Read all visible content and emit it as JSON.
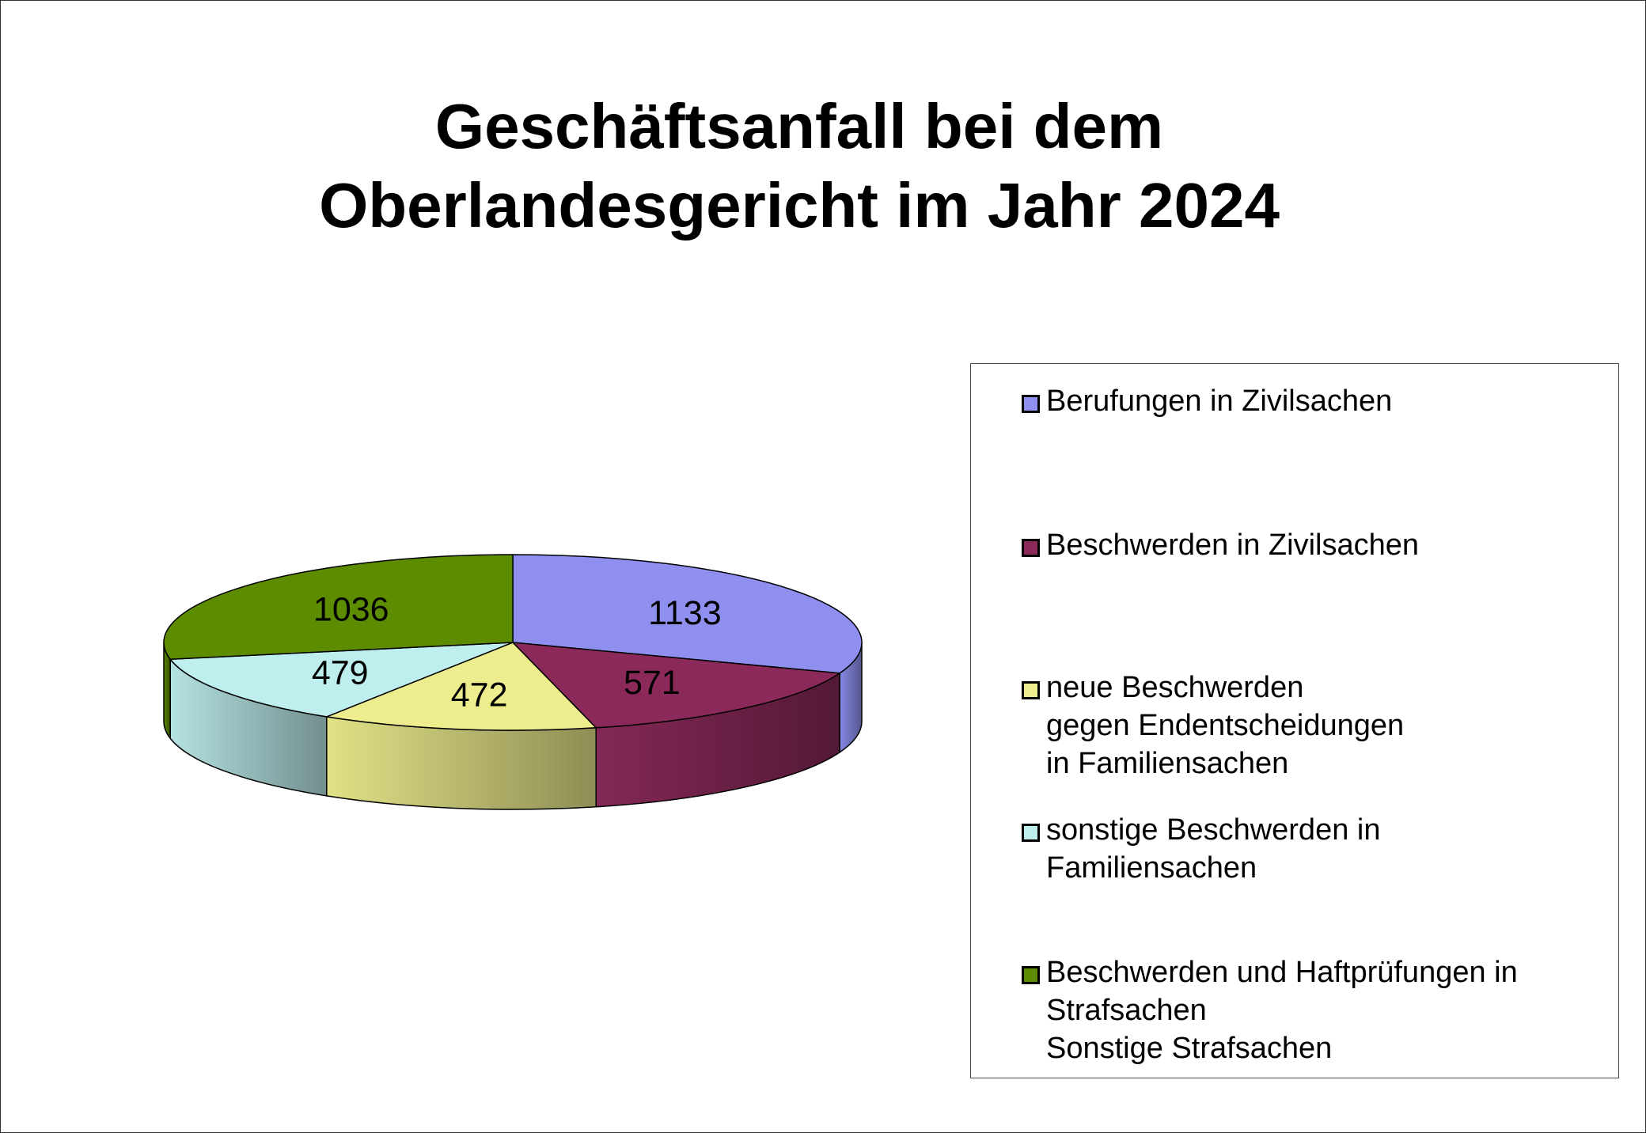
{
  "title_lines": [
    "Geschäftsanfall bei dem",
    "Oberlandesgericht im Jahr 2024"
  ],
  "chart_data": {
    "type": "pie",
    "title": "Geschäftsanfall bei dem Oberlandesgericht im Jahr 2024",
    "style": "3d",
    "legend_position": "right",
    "series": [
      {
        "name": "Berufungen in Zivilsachen",
        "label_lines": [
          "Berufungen in Zivilsachen"
        ],
        "value": 1133,
        "color": "#8e8fef"
      },
      {
        "name": "Beschwerden in Zivilsachen",
        "label_lines": [
          "Beschwerden in Zivilsachen"
        ],
        "value": 571,
        "color": "#8b2a5a"
      },
      {
        "name": "neue Beschwerden gegen Endentscheidungen in Familiensachen",
        "label_lines": [
          "neue Beschwerden",
          "gegen Endentscheidungen",
          "in Familiensachen"
        ],
        "value": 472,
        "color": "#eded8e"
      },
      {
        "name": "sonstige Beschwerden in Familiensachen",
        "label_lines": [
          "sonstige Beschwerden in",
          "Familiensachen"
        ],
        "value": 479,
        "color": "#bfeeee"
      },
      {
        "name": "Beschwerden und Haftprüfungen in Strafsachen Sonstige Strafsachen",
        "label_lines": [
          "Beschwerden und Haftprüfungen in",
          "Strafsachen",
          "Sonstige Strafsachen"
        ],
        "value": 1036,
        "color": "#5e8c00"
      }
    ]
  }
}
